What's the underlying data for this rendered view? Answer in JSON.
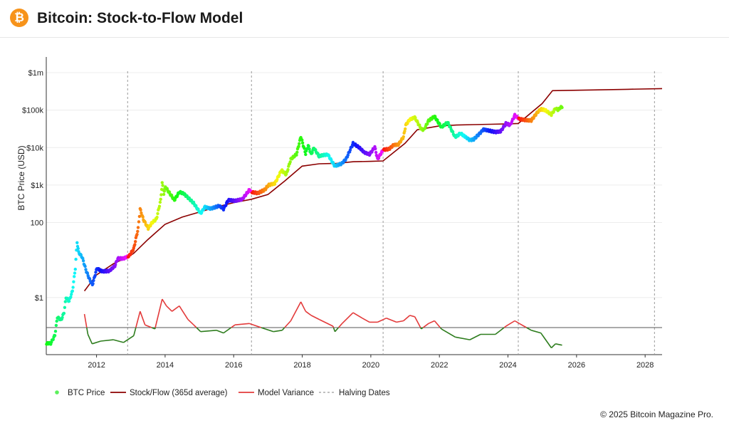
{
  "header": {
    "logo_glyph": "₿",
    "title": "Bitcoin: Stock-to-Flow Model"
  },
  "footer": {
    "copyright": "© 2025 Bitcoin Magazine Pro."
  },
  "colors": {
    "sf": "#8b0000",
    "variance_high": "#e33b3b",
    "variance_low": "#2e7d1e",
    "grid": "#ececec",
    "halving": "#9a9a9a",
    "legend_price": "#5cf05c"
  },
  "chart_data": {
    "type": "line",
    "ylabel": "BTC Price (USD)",
    "yscale": "log",
    "y_ticks": [
      {
        "value": 1,
        "label": "$1"
      },
      {
        "value": 100,
        "label": "100"
      },
      {
        "value": 1000,
        "label": "$1k"
      },
      {
        "value": 10000,
        "label": "$10k"
      },
      {
        "value": 100000,
        "label": "$100k"
      },
      {
        "value": 1000000,
        "label": "$1m"
      }
    ],
    "x_ticks": [
      "2012",
      "2014",
      "2016",
      "2018",
      "2020",
      "2022",
      "2024",
      "2026",
      "2028"
    ],
    "xlim": [
      "2010-07-15",
      "2028-06-30"
    ],
    "halving_dates": [
      "2012-11-28",
      "2016-07-09",
      "2020-05-11",
      "2024-04-20"
    ],
    "legend": [
      "BTC Price",
      "Stock/Flow (365d average)",
      "Model Variance",
      "Halving Dates"
    ],
    "series": [
      {
        "name": "BTC Price",
        "points": [
          [
            "2010-07-18",
            0.06
          ],
          [
            "2010-09-01",
            0.06
          ],
          [
            "2010-10-15",
            0.1
          ],
          [
            "2010-11-10",
            0.3
          ],
          [
            "2010-12-20",
            0.25
          ],
          [
            "2011-01-20",
            0.4
          ],
          [
            "2011-02-10",
            1.0
          ],
          [
            "2011-03-15",
            0.8
          ],
          [
            "2011-04-20",
            1.5
          ],
          [
            "2011-05-20",
            6
          ],
          [
            "2011-06-08",
            30
          ],
          [
            "2011-06-25",
            16
          ],
          [
            "2011-08-01",
            12
          ],
          [
            "2011-09-15",
            5
          ],
          [
            "2011-10-20",
            3
          ],
          [
            "2011-11-18",
            2.2
          ],
          [
            "2012-01-05",
            6
          ],
          [
            "2012-03-01",
            5
          ],
          [
            "2012-05-15",
            5.1
          ],
          [
            "2012-07-15",
            7
          ],
          [
            "2012-08-15",
            11
          ],
          [
            "2012-10-15",
            11
          ],
          [
            "2012-12-15",
            13
          ],
          [
            "2013-02-01",
            20
          ],
          [
            "2013-03-20",
            70
          ],
          [
            "2013-04-10",
            230
          ],
          [
            "2013-05-15",
            120
          ],
          [
            "2013-07-05",
            70
          ],
          [
            "2013-08-15",
            100
          ],
          [
            "2013-10-01",
            125
          ],
          [
            "2013-11-15",
            400
          ],
          [
            "2013-12-01",
            1150
          ],
          [
            "2013-12-18",
            600
          ],
          [
            "2014-01-05",
            900
          ],
          [
            "2014-02-10",
            650
          ],
          [
            "2014-04-10",
            400
          ],
          [
            "2014-06-01",
            650
          ],
          [
            "2014-07-15",
            600
          ],
          [
            "2014-09-15",
            430
          ],
          [
            "2014-11-01",
            330
          ],
          [
            "2015-01-14",
            175
          ],
          [
            "2015-03-01",
            260
          ],
          [
            "2015-05-01",
            235
          ],
          [
            "2015-08-01",
            280
          ],
          [
            "2015-09-15",
            230
          ],
          [
            "2015-11-05",
            400
          ],
          [
            "2016-01-15",
            380
          ],
          [
            "2016-04-01",
            420
          ],
          [
            "2016-06-18",
            750
          ],
          [
            "2016-07-09",
            650
          ],
          [
            "2016-09-15",
            610
          ],
          [
            "2016-12-01",
            760
          ],
          [
            "2017-01-05",
            1000
          ],
          [
            "2017-03-15",
            1100
          ],
          [
            "2017-05-25",
            2500
          ],
          [
            "2017-07-15",
            1900
          ],
          [
            "2017-09-01",
            4900
          ],
          [
            "2017-11-01",
            6700
          ],
          [
            "2017-12-17",
            19500
          ],
          [
            "2018-02-06",
            6900
          ],
          [
            "2018-03-05",
            11500
          ],
          [
            "2018-04-06",
            6600
          ],
          [
            "2018-05-05",
            9800
          ],
          [
            "2018-06-28",
            5900
          ],
          [
            "2018-08-10",
            6300
          ],
          [
            "2018-10-01",
            6500
          ],
          [
            "2018-11-25",
            3800
          ],
          [
            "2018-12-15",
            3200
          ],
          [
            "2019-03-01",
            3800
          ],
          [
            "2019-04-15",
            5100
          ],
          [
            "2019-06-26",
            13000
          ],
          [
            "2019-09-01",
            10000
          ],
          [
            "2019-10-25",
            7400
          ],
          [
            "2019-12-18",
            6600
          ],
          [
            "2020-02-13",
            10300
          ],
          [
            "2020-03-13",
            4900
          ],
          [
            "2020-05-11",
            8700
          ],
          [
            "2020-07-15",
            9200
          ],
          [
            "2020-09-01",
            11800
          ],
          [
            "2020-10-20",
            12000
          ],
          [
            "2020-12-15",
            19300
          ],
          [
            "2021-01-08",
            40000
          ],
          [
            "2021-02-20",
            56000
          ],
          [
            "2021-04-14",
            64000
          ],
          [
            "2021-06-22",
            31000
          ],
          [
            "2021-07-20",
            30000
          ],
          [
            "2021-09-07",
            52000
          ],
          [
            "2021-11-10",
            68000
          ],
          [
            "2022-01-22",
            35000
          ],
          [
            "2022-03-30",
            47000
          ],
          [
            "2022-06-18",
            19000
          ],
          [
            "2022-08-14",
            24000
          ],
          [
            "2022-11-21",
            15800
          ],
          [
            "2023-01-01",
            16600
          ],
          [
            "2023-03-15",
            25000
          ],
          [
            "2023-04-14",
            30500
          ],
          [
            "2023-08-20",
            26000
          ],
          [
            "2023-10-15",
            27000
          ],
          [
            "2023-12-10",
            44000
          ],
          [
            "2024-01-25",
            40000
          ],
          [
            "2024-03-14",
            73000
          ],
          [
            "2024-05-01",
            58000
          ],
          [
            "2024-07-05",
            54000
          ],
          [
            "2024-09-06",
            53000
          ],
          [
            "2024-11-12",
            88000
          ],
          [
            "2024-12-17",
            106000
          ],
          [
            "2025-02-01",
            100000
          ],
          [
            "2025-04-08",
            76000
          ],
          [
            "2025-05-22",
            111000
          ],
          [
            "2025-06-22",
            101000
          ],
          [
            "2025-07-14",
            120000
          ],
          [
            "2025-07-31",
            117000
          ]
        ]
      },
      {
        "name": "Stock/Flow (365d average)",
        "points": [
          [
            "2011-08-25",
            1.5
          ],
          [
            "2011-12-31",
            4
          ],
          [
            "2012-06-30",
            8
          ],
          [
            "2012-11-28",
            12
          ],
          [
            "2013-01-31",
            15
          ],
          [
            "2013-06-30",
            35
          ],
          [
            "2013-12-31",
            90
          ],
          [
            "2014-07-01",
            140
          ],
          [
            "2014-12-31",
            190
          ],
          [
            "2015-07-01",
            260
          ],
          [
            "2015-12-31",
            340
          ],
          [
            "2016-07-09",
            420
          ],
          [
            "2016-12-31",
            560
          ],
          [
            "2017-07-01",
            1300
          ],
          [
            "2017-12-31",
            3200
          ],
          [
            "2018-06-30",
            3700
          ],
          [
            "2018-12-31",
            3800
          ],
          [
            "2019-06-30",
            4200
          ],
          [
            "2019-12-31",
            4300
          ],
          [
            "2020-05-11",
            4400
          ],
          [
            "2020-12-31",
            13000
          ],
          [
            "2021-05-10",
            30000
          ],
          [
            "2021-12-31",
            38000
          ],
          [
            "2022-06-30",
            40000
          ],
          [
            "2022-12-31",
            41000
          ],
          [
            "2023-06-30",
            42000
          ],
          [
            "2023-12-31",
            43000
          ],
          [
            "2024-04-20",
            44000
          ],
          [
            "2024-12-31",
            150000
          ],
          [
            "2025-04-20",
            330000
          ],
          [
            "2026-06-30",
            345000
          ],
          [
            "2027-06-30",
            360000
          ],
          [
            "2028-06-30",
            375000
          ]
        ]
      },
      {
        "name": "Model Variance",
        "points": [
          [
            "2011-08-25",
            1.0
          ],
          [
            "2011-10-01",
            -0.5
          ],
          [
            "2011-11-15",
            -1.2
          ],
          [
            "2012-02-15",
            -1.0
          ],
          [
            "2012-06-30",
            -0.9
          ],
          [
            "2012-10-15",
            -1.1
          ],
          [
            "2013-02-01",
            -0.6
          ],
          [
            "2013-04-10",
            1.2
          ],
          [
            "2013-06-01",
            0.2
          ],
          [
            "2013-09-15",
            -0.1
          ],
          [
            "2013-12-01",
            2.1
          ],
          [
            "2014-01-15",
            1.6
          ],
          [
            "2014-03-15",
            1.2
          ],
          [
            "2014-06-01",
            1.6
          ],
          [
            "2014-09-01",
            0.6
          ],
          [
            "2014-11-01",
            0.2
          ],
          [
            "2015-01-14",
            -0.3
          ],
          [
            "2015-07-01",
            -0.2
          ],
          [
            "2015-09-15",
            -0.4
          ],
          [
            "2016-01-15",
            0.2
          ],
          [
            "2016-06-15",
            0.3
          ],
          [
            "2016-12-01",
            -0.1
          ],
          [
            "2017-03-01",
            -0.3
          ],
          [
            "2017-06-01",
            -0.2
          ],
          [
            "2017-09-01",
            0.5
          ],
          [
            "2017-12-17",
            1.9
          ],
          [
            "2018-02-06",
            1.2
          ],
          [
            "2018-04-06",
            0.9
          ],
          [
            "2018-07-01",
            0.6
          ],
          [
            "2018-11-25",
            0.1
          ],
          [
            "2018-12-15",
            -0.3
          ],
          [
            "2019-03-01",
            0.3
          ],
          [
            "2019-06-26",
            1.1
          ],
          [
            "2019-10-01",
            0.7
          ],
          [
            "2019-12-18",
            0.4
          ],
          [
            "2020-03-13",
            0.4
          ],
          [
            "2020-06-15",
            0.7
          ],
          [
            "2020-10-01",
            0.4
          ],
          [
            "2020-12-15",
            0.5
          ],
          [
            "2021-02-20",
            0.9
          ],
          [
            "2021-04-14",
            0.8
          ],
          [
            "2021-06-22",
            -0.1
          ],
          [
            "2021-09-07",
            0.3
          ],
          [
            "2021-11-10",
            0.5
          ],
          [
            "2022-01-22",
            -0.1
          ],
          [
            "2022-06-18",
            -0.7
          ],
          [
            "2022-11-21",
            -0.9
          ],
          [
            "2023-03-15",
            -0.5
          ],
          [
            "2023-08-20",
            -0.5
          ],
          [
            "2023-12-10",
            0.1
          ],
          [
            "2024-03-14",
            0.5
          ],
          [
            "2024-05-01",
            0.3
          ],
          [
            "2024-09-06",
            -0.2
          ],
          [
            "2024-12-17",
            -0.4
          ],
          [
            "2025-04-08",
            -1.5
          ],
          [
            "2025-05-22",
            -1.2
          ],
          [
            "2025-07-31",
            -1.3
          ]
        ]
      }
    ]
  }
}
